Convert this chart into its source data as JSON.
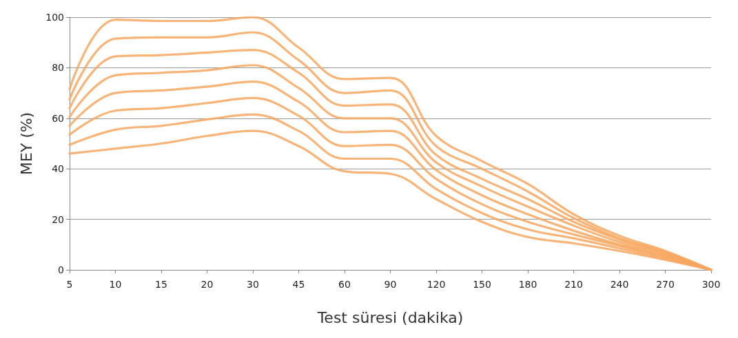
{
  "chart_data": {
    "type": "line",
    "xlabel": "Test süresi (dakika)",
    "ylabel": "MEY (%)",
    "categories": [
      "5",
      "10",
      "15",
      "20",
      "30",
      "45",
      "60",
      "90",
      "120",
      "150",
      "180",
      "210",
      "240",
      "270",
      "300"
    ],
    "ylim": [
      0,
      100
    ],
    "yticks": [
      0,
      20,
      40,
      60,
      80,
      100
    ],
    "grid": "y",
    "marker": "none",
    "line_style": "solid",
    "series": [
      {
        "color": "#f7a65e",
        "values": [
          46,
          48,
          50,
          53,
          55,
          49,
          39,
          38,
          28,
          19,
          13,
          10.5,
          7.5,
          4,
          0
        ]
      },
      {
        "color": "#f7a65e",
        "values": [
          49.5,
          55.5,
          57,
          59.5,
          61.5,
          55,
          44,
          44,
          32,
          22.5,
          16,
          12.5,
          8.5,
          4.5,
          0
        ]
      },
      {
        "color": "#f7a65e",
        "values": [
          53.5,
          63,
          64,
          66,
          68,
          61,
          49,
          49.5,
          36,
          26,
          19,
          14,
          9.5,
          5,
          0
        ]
      },
      {
        "color": "#f7a65e",
        "values": [
          57,
          70,
          71,
          72.5,
          74.5,
          66.5,
          54.5,
          55,
          39.5,
          29.5,
          22,
          15.5,
          10,
          5.5,
          0
        ]
      },
      {
        "color": "#f7a65e",
        "values": [
          60.5,
          77,
          78,
          79,
          81,
          72,
          60,
          60,
          42.5,
          33,
          25,
          17.5,
          11,
          6,
          0
        ]
      },
      {
        "color": "#f7a65e",
        "values": [
          64,
          84.5,
          85,
          86,
          87,
          78,
          65,
          65.5,
          45.5,
          36,
          28,
          19,
          12,
          6.5,
          0
        ]
      },
      {
        "color": "#f7a65e",
        "values": [
          67.5,
          91.5,
          92,
          92,
          94,
          83,
          70,
          71,
          49,
          40,
          31,
          20.5,
          12.5,
          7,
          0
        ]
      },
      {
        "color": "#f7a65e",
        "values": [
          71.5,
          99,
          98.5,
          98.5,
          100,
          88,
          75.5,
          76,
          53,
          43,
          34,
          22,
          13.5,
          7.5,
          0
        ]
      }
    ]
  }
}
